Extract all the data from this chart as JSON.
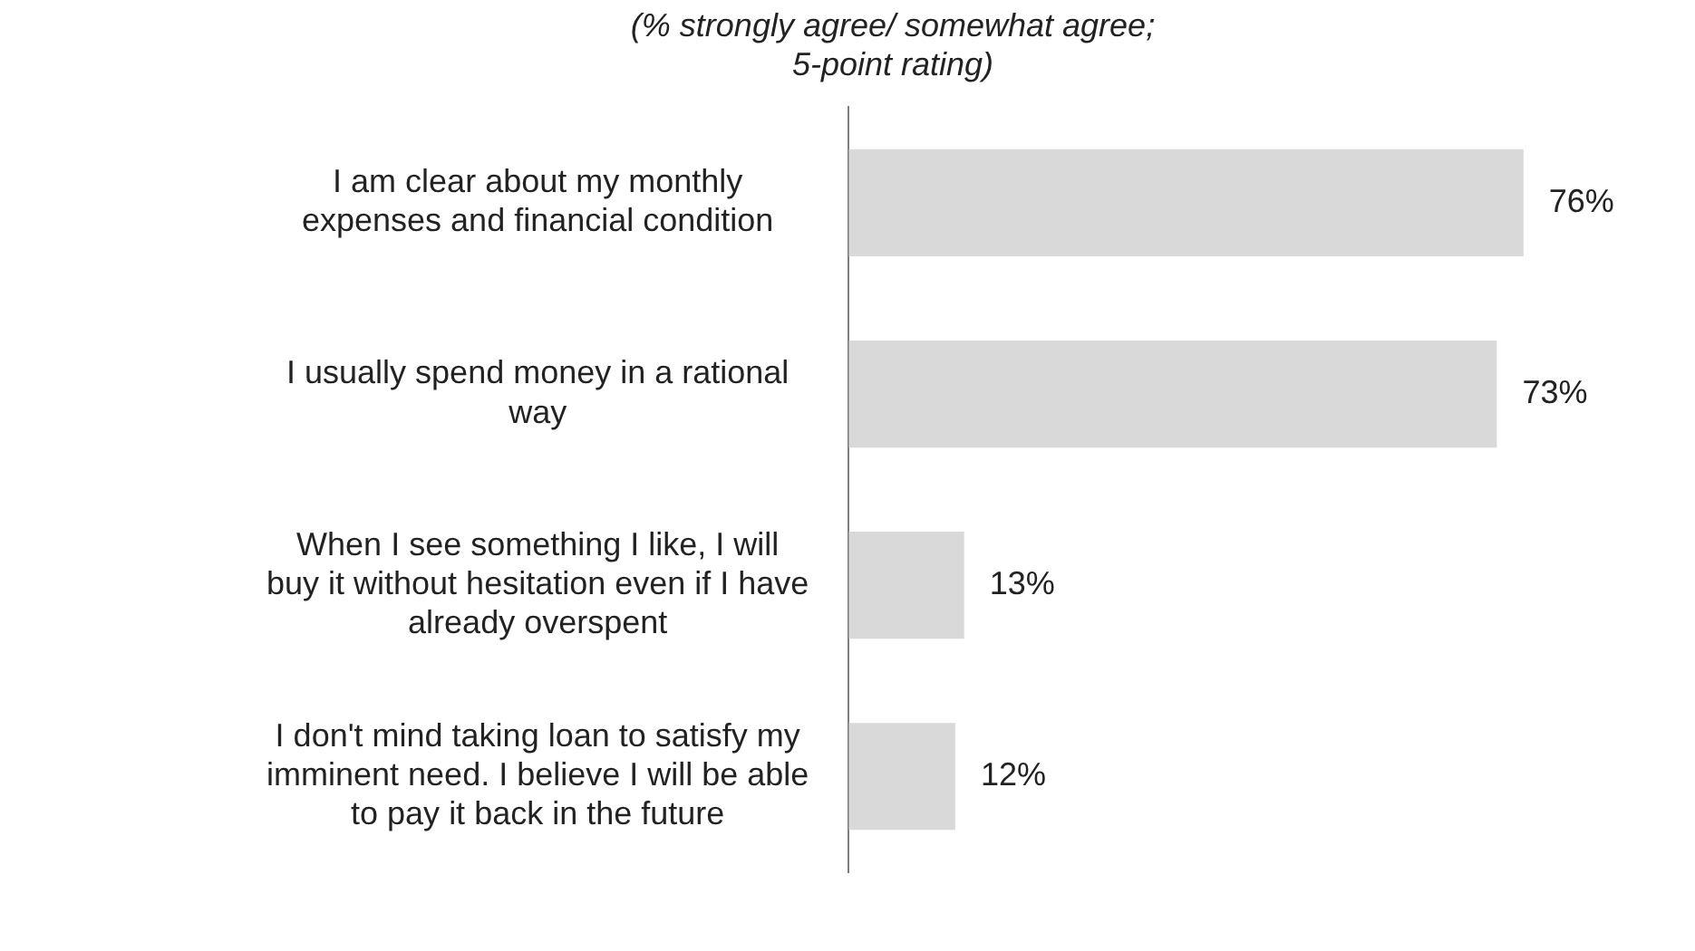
{
  "chart_data": {
    "type": "bar",
    "orientation": "horizontal",
    "title": "(% strongly agree/ somewhat agree;\n5-point rating)",
    "categories": [
      "I am clear about my monthly expenses and financial condition",
      "I usually spend money in a rational way",
      "When I see something I like, I will buy it without hesitation even if I have already overspent",
      "I don't mind taking loan to satisfy my imminent need. I believe I will be able to pay it back in the future"
    ],
    "values": [
      76,
      73,
      13,
      12
    ],
    "value_labels": [
      "76%",
      "73%",
      "13%",
      "12%"
    ],
    "color": "#d9d9d9"
  }
}
